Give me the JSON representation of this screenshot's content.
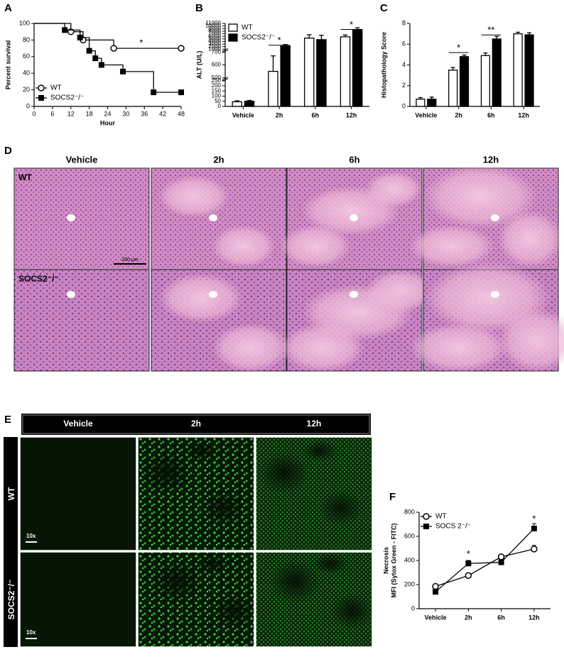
{
  "chart_data": [
    {
      "type": "step",
      "panel": "A",
      "xlabel": "Hour",
      "ylabel": "Percent survival",
      "xlim": [
        0,
        48
      ],
      "xticks": [
        0,
        6,
        12,
        18,
        24,
        30,
        36,
        42,
        48
      ],
      "ylim": [
        0,
        100
      ],
      "yticks": [
        0,
        20,
        40,
        60,
        80,
        100
      ],
      "legend": "lower left",
      "series": [
        {
          "name": "WT",
          "color": "#000000",
          "marker": "open-circle",
          "x": [
            0,
            12,
            16,
            26,
            48
          ],
          "values": [
            100,
            90,
            80,
            70,
            70
          ]
        },
        {
          "name": "SOCS2⁻/⁻",
          "color": "#000000",
          "marker": "filled-square",
          "x": [
            0,
            10,
            15,
            18,
            20,
            22,
            29,
            39,
            48
          ],
          "values": [
            100,
            92,
            83,
            67,
            58,
            50,
            42,
            17,
            17
          ]
        }
      ],
      "annotations": [
        {
          "text": "*",
          "x": 35,
          "y": 76
        }
      ]
    },
    {
      "type": "bar",
      "panel": "B",
      "ylabel": "ALT (U/L)",
      "categories": [
        "Vehicle",
        "2h",
        "6h",
        "12h"
      ],
      "ysegments": [
        [
          0,
          250
        ],
        [
          500,
          700
        ],
        [
          1000,
          11000
        ]
      ],
      "ylim": [
        0,
        11000
      ],
      "yticks": [
        0,
        50,
        100,
        150,
        200,
        250,
        500,
        600,
        700,
        1000,
        2000,
        3000,
        4000,
        5000,
        6000,
        7000,
        8000,
        9000,
        10000,
        11000
      ],
      "legend": "upper left",
      "series": [
        {
          "name": "WT",
          "color": "#ffffff",
          "values": [
            45,
            550,
            5300,
            5800
          ],
          "errors": [
            10,
            120,
            1300,
            700
          ]
        },
        {
          "name": "SOCS2⁻/⁻",
          "color": "#000000",
          "values": [
            50,
            2200,
            4700,
            8500
          ],
          "errors": [
            8,
            600,
            1700,
            800
          ]
        }
      ],
      "annotations": [
        {
          "text": "*",
          "category": 1,
          "y": 4200
        },
        {
          "text": "*",
          "category": 3,
          "y": 10300
        }
      ]
    },
    {
      "type": "bar",
      "panel": "C",
      "ylabel": "Histopathology Score",
      "categories": [
        "Vehicle",
        "2h",
        "6h",
        "12h"
      ],
      "ylim": [
        0,
        8
      ],
      "yticks": [
        0,
        2,
        4,
        6,
        8
      ],
      "series": [
        {
          "color": "#ffffff",
          "values": [
            0.7,
            3.5,
            4.9,
            7.0
          ],
          "errors": [
            0.15,
            0.25,
            0.25,
            0.15
          ]
        },
        {
          "color": "#000000",
          "values": [
            0.7,
            4.8,
            6.5,
            6.9
          ],
          "errors": [
            0.2,
            0.15,
            0.25,
            0.2
          ]
        }
      ],
      "annotations": [
        {
          "text": "*",
          "category": 1,
          "y": 5.6
        },
        {
          "text": "**",
          "category": 2,
          "y": 7.3
        }
      ]
    },
    {
      "type": "line",
      "panel": "F",
      "ylabel": [
        "Necrosis",
        "MFI (Sytox Green - FITC)"
      ],
      "categories": [
        "Vehicle",
        "2h",
        "6h",
        "12h"
      ],
      "ylim": [
        0,
        800
      ],
      "yticks": [
        0,
        200,
        400,
        600,
        800
      ],
      "legend": "upper left",
      "series": [
        {
          "name": "WT",
          "color": "#000000",
          "marker": "open-circle",
          "values": [
            185,
            275,
            430,
            495
          ],
          "errors": [
            10,
            10,
            12,
            30
          ]
        },
        {
          "name": "SOCS 2⁻/⁻",
          "color": "#000000",
          "marker": "filled-square",
          "values": [
            140,
            375,
            385,
            665
          ],
          "errors": [
            10,
            25,
            12,
            40
          ]
        }
      ],
      "annotations": [
        {
          "text": "*",
          "category": 1,
          "y": 450
        },
        {
          "text": "*",
          "category": 3,
          "y": 740
        }
      ]
    }
  ],
  "panel_d": {
    "panel": "D",
    "columns": [
      "Vehicle",
      "2h",
      "6h",
      "12h"
    ],
    "rows": [
      "WT",
      "SOCS2⁻/⁻"
    ],
    "scale_bar": "200 μm"
  },
  "panel_e": {
    "panel": "E",
    "columns": [
      "Vehicle",
      "2h",
      "12h"
    ],
    "rows": [
      "WT",
      "SOCS2⁻/⁻"
    ],
    "magnification": "10x"
  }
}
